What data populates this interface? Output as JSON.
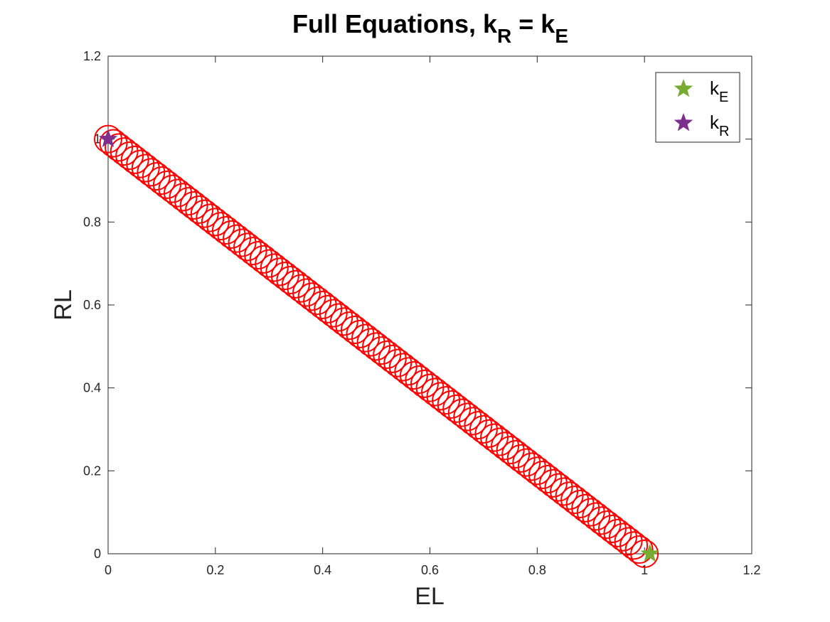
{
  "chart_data": {
    "type": "scatter",
    "title": {
      "main": "Full Equations, k",
      "sub1": "R",
      "mid": " = k",
      "sub2": "E"
    },
    "xlabel": "EL",
    "ylabel": "RL",
    "xlim": [
      0,
      1.2
    ],
    "ylim": [
      0,
      1.2
    ],
    "xticks": [
      "0",
      "0.2",
      "0.4",
      "0.6",
      "0.8",
      "1",
      "1.2"
    ],
    "yticks": [
      "0",
      "0.2",
      "0.4",
      "0.6",
      "0.8",
      "1",
      "1.2"
    ],
    "grid": false,
    "box": true,
    "legend_position": "top-right",
    "series": [
      {
        "kind": "circles",
        "color": "#ff0000",
        "x_start": 0.0,
        "x_end": 1.0,
        "relation": "RL = 1 - EL",
        "values_x": [
          0.0,
          0.01,
          0.02,
          0.03,
          0.04,
          0.05,
          0.06,
          0.07,
          0.08,
          0.09,
          0.1,
          0.11,
          0.12,
          0.13,
          0.14,
          0.15,
          0.16,
          0.17,
          0.18,
          0.19,
          0.2,
          0.21,
          0.22,
          0.23,
          0.24,
          0.25,
          0.26,
          0.27,
          0.28,
          0.29,
          0.3,
          0.31,
          0.32,
          0.33,
          0.34,
          0.35,
          0.36,
          0.37,
          0.38,
          0.39,
          0.4,
          0.41,
          0.42,
          0.43,
          0.44,
          0.45,
          0.46,
          0.47,
          0.48,
          0.49,
          0.5,
          0.51,
          0.52,
          0.53,
          0.54,
          0.55,
          0.56,
          0.57,
          0.58,
          0.59,
          0.6,
          0.61,
          0.62,
          0.63,
          0.64,
          0.65,
          0.66,
          0.67,
          0.68,
          0.69,
          0.7,
          0.71,
          0.72,
          0.73,
          0.74,
          0.75,
          0.76,
          0.77,
          0.78,
          0.79,
          0.8,
          0.81,
          0.82,
          0.83,
          0.84,
          0.85,
          0.86,
          0.87,
          0.88,
          0.89,
          0.9,
          0.91,
          0.92,
          0.93,
          0.94,
          0.95,
          0.96,
          0.97,
          0.98,
          0.99,
          1.0
        ]
      },
      {
        "name": "E",
        "name_prefix": "k",
        "kind": "star",
        "color": "#77ac30",
        "x": 1.01,
        "y": 0.0
      },
      {
        "name": "R",
        "name_prefix": "k",
        "kind": "star",
        "color": "#7e2f8e",
        "x": 0.0,
        "y": 1.0
      }
    ]
  }
}
